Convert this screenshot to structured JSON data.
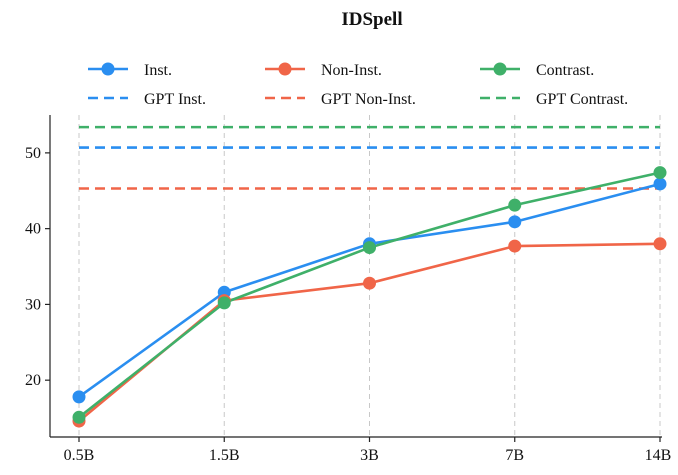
{
  "chart_data": {
    "type": "line",
    "title": "IDSpell",
    "xlabel": "",
    "ylabel": "",
    "categories": [
      "0.5B",
      "1.5B",
      "3B",
      "7B",
      "14B"
    ],
    "yticks": [
      20,
      30,
      40,
      50
    ],
    "ylim": [
      12.5,
      55
    ],
    "grid": "vertical dashed",
    "legend_position": "top",
    "series": [
      {
        "name": "Inst.",
        "color": "#2a8ef0",
        "values": [
          17.8,
          31.6,
          38.0,
          40.9,
          45.9
        ]
      },
      {
        "name": "Non-Inst.",
        "color": "#f06548",
        "values": [
          14.6,
          30.5,
          32.8,
          37.7,
          38.0
        ]
      },
      {
        "name": "Contrast.",
        "color": "#3fb069",
        "values": [
          15.1,
          30.2,
          37.5,
          43.1,
          47.4
        ]
      }
    ],
    "reference_lines": [
      {
        "name": "GPT Inst.",
        "color": "#2a8ef0",
        "value": 50.7
      },
      {
        "name": "GPT Non-Inst.",
        "color": "#f06548",
        "value": 45.3
      },
      {
        "name": "GPT Contrast.",
        "color": "#3fb069",
        "value": 53.4
      }
    ]
  }
}
